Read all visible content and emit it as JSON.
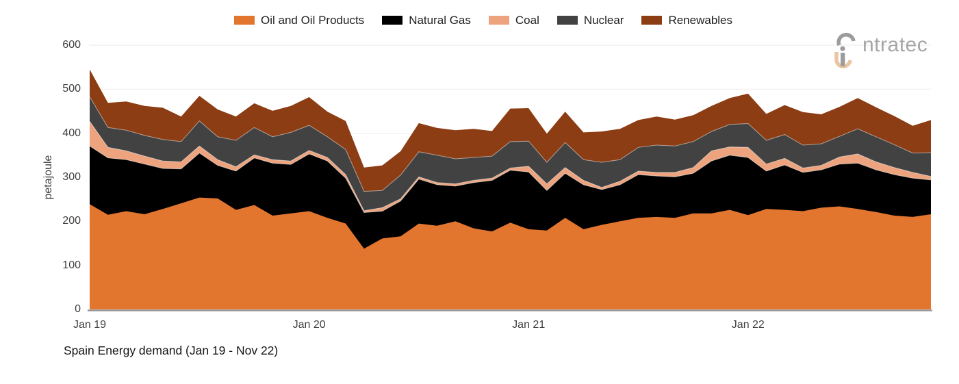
{
  "theme": {
    "background": "#ffffff",
    "grid": "#f1eeea",
    "axis_line": "#979797",
    "tick_text": "#3f3f3f",
    "title_text": "#141414",
    "legend_text": "#1e1e1e",
    "logo_gray": "#9c9c9c",
    "logo_tan": "#eac5a2",
    "logo_text": "#a6a6a6",
    "band_separator": "rgba(255,255,255,0.5)"
  },
  "logo": {
    "text": "ntratec"
  },
  "chart_data": {
    "type": "area",
    "stacked": true,
    "title": "Spain Energy demand (Jan 19 - Nov 22)",
    "xlabel": "",
    "ylabel": "petajoule",
    "ylim": [
      0,
      600
    ],
    "y_ticks": [
      0,
      100,
      200,
      300,
      400,
      500,
      600
    ],
    "grid": true,
    "legend_position": "top-center",
    "x_tick_labels": [
      "Jan 19",
      "Jan 20",
      "Jan 21",
      "Jan 22"
    ],
    "x_tick_indices": [
      0,
      12,
      24,
      36
    ],
    "categories": [
      "Jan 19",
      "Feb 19",
      "Mar 19",
      "Apr 19",
      "May 19",
      "Jun 19",
      "Jul 19",
      "Aug 19",
      "Sep 19",
      "Oct 19",
      "Nov 19",
      "Dec 19",
      "Jan 20",
      "Feb 20",
      "Mar 20",
      "Apr 20",
      "May 20",
      "Jun 20",
      "Jul 20",
      "Aug 20",
      "Sep 20",
      "Oct 20",
      "Nov 20",
      "Dec 20",
      "Jan 21",
      "Feb 21",
      "Mar 21",
      "Apr 21",
      "May 21",
      "Jun 21",
      "Jul 21",
      "Aug 21",
      "Sep 21",
      "Oct 21",
      "Nov 21",
      "Dec 21",
      "Jan 22",
      "Feb 22",
      "Mar 22",
      "Apr 22",
      "May 22",
      "Jun 22",
      "Jul 22",
      "Aug 22",
      "Sep 22",
      "Oct 22",
      "Nov 22"
    ],
    "series": [
      {
        "name": "Oil and Oil Products",
        "color": "#e2762f",
        "values": [
          239,
          215,
          223,
          216,
          228,
          241,
          254,
          252,
          226,
          237,
          213,
          218,
          223,
          208,
          195,
          138,
          161,
          166,
          195,
          190,
          200,
          184,
          177,
          197,
          182,
          179,
          208,
          182,
          192,
          200,
          208,
          210,
          208,
          218,
          218,
          226,
          214,
          228,
          226,
          223,
          231,
          234,
          228,
          221,
          213,
          210,
          216
        ]
      },
      {
        "name": "Natural Gas",
        "color": "#000000",
        "values": [
          132,
          129,
          117,
          114,
          92,
          78,
          101,
          75,
          88,
          107,
          119,
          111,
          130,
          129,
          103,
          82,
          62,
          80,
          101,
          93,
          80,
          104,
          116,
          119,
          130,
          91,
          101,
          101,
          80,
          83,
          98,
          93,
          93,
          91,
          119,
          124,
          131,
          86,
          102,
          88,
          86,
          96,
          104,
          96,
          93,
          88,
          78
        ]
      },
      {
        "name": "Coal",
        "color": "#eda47e",
        "values": [
          56,
          24,
          20,
          18,
          17,
          16,
          16,
          13,
          10,
          7,
          8,
          8,
          8,
          8,
          8,
          4,
          8,
          5,
          5,
          5,
          5,
          5,
          5,
          5,
          13,
          15,
          13,
          10,
          5,
          8,
          8,
          8,
          10,
          13,
          23,
          19,
          23,
          16,
          15,
          10,
          10,
          16,
          21,
          18,
          16,
          13,
          8
        ]
      },
      {
        "name": "Nuclear",
        "color": "#424242",
        "values": [
          56,
          45,
          47,
          47,
          49,
          46,
          57,
          52,
          60,
          62,
          52,
          65,
          57,
          47,
          57,
          44,
          39,
          54,
          57,
          62,
          57,
          52,
          50,
          60,
          57,
          49,
          57,
          47,
          57,
          49,
          54,
          62,
          60,
          59,
          44,
          51,
          54,
          54,
          54,
          52,
          49,
          47,
          57,
          57,
          52,
          44,
          54
        ]
      },
      {
        "name": "Renewables",
        "color": "#8c3d14",
        "values": [
          62,
          56,
          65,
          67,
          72,
          57,
          57,
          62,
          54,
          55,
          59,
          60,
          64,
          57,
          65,
          54,
          57,
          54,
          65,
          62,
          65,
          65,
          57,
          75,
          75,
          65,
          70,
          62,
          70,
          70,
          62,
          65,
          60,
          60,
          58,
          60,
          68,
          60,
          67,
          75,
          67,
          67,
          70,
          67,
          65,
          62,
          74
        ]
      }
    ]
  }
}
